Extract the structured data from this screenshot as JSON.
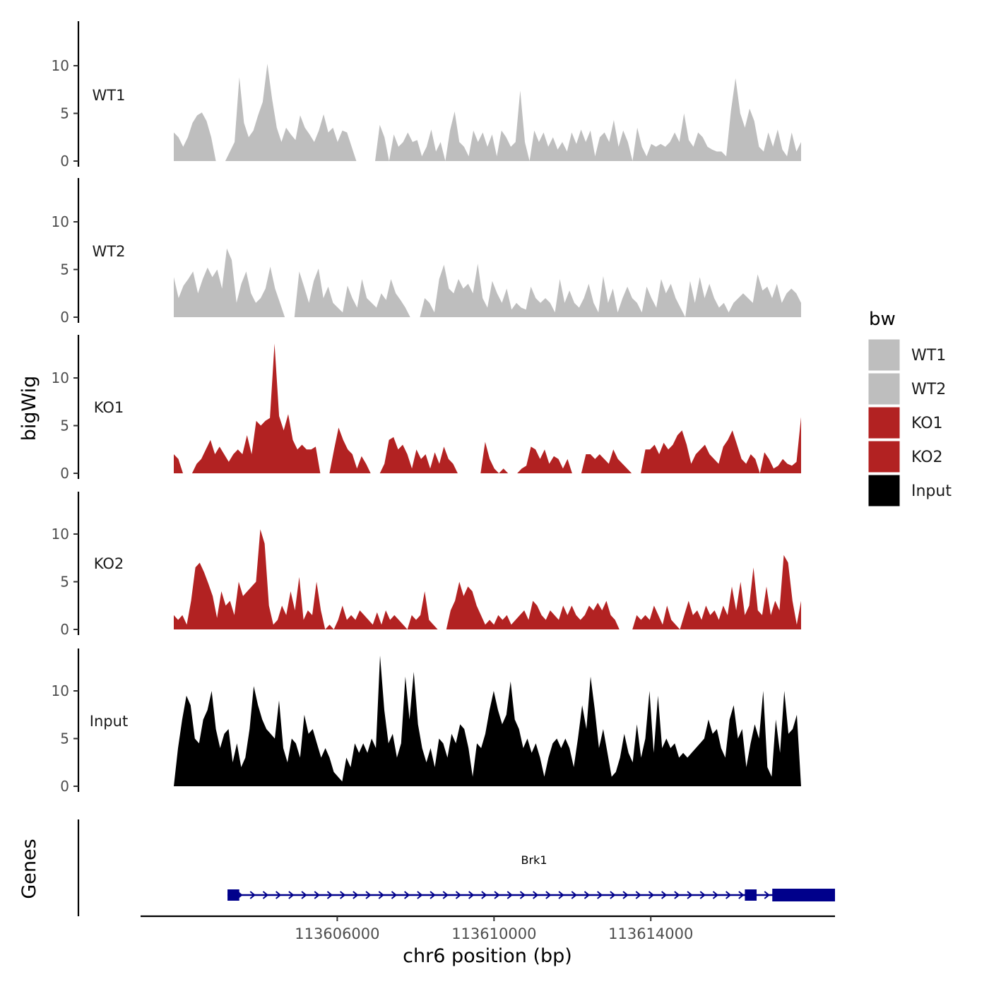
{
  "chart_data": {
    "type": "area",
    "ylabel": "bigWig",
    "xlabel": "chr6 position (bp)",
    "xlim": [
      113601000,
      113618700
    ],
    "ylim": [
      0,
      14
    ],
    "yticks": [
      "0",
      "5",
      "10"
    ],
    "xticks": [
      {
        "value": 113606000,
        "label": "113606000"
      },
      {
        "value": 113610000,
        "label": "113610000"
      },
      {
        "value": 113614000,
        "label": "113614000"
      }
    ],
    "legend": {
      "title": "bw",
      "position": "right",
      "entries": [
        {
          "label": "WT1",
          "color": "#bebebe"
        },
        {
          "label": "WT2",
          "color": "#bebebe"
        },
        {
          "label": "KO1",
          "color": "#b22222"
        },
        {
          "label": "KO2",
          "color": "#b22222"
        },
        {
          "label": "Input",
          "color": "#000000"
        }
      ]
    },
    "series": [
      {
        "name": "WT1",
        "color": "#bebebe",
        "values": [
          3.0,
          2.5,
          1.5,
          2.5,
          4.0,
          4.8,
          5.1,
          4.2,
          2.5,
          0.0,
          null,
          0.0,
          1.0,
          2.0,
          8.8,
          4.0,
          2.5,
          3.2,
          4.8,
          6.2,
          10.2,
          6.5,
          3.5,
          2.0,
          3.5,
          2.8,
          2.2,
          4.8,
          3.5,
          2.8,
          2.0,
          3.2,
          4.9,
          3.0,
          3.5,
          2.0,
          3.2,
          3.0,
          1.5,
          0.0,
          null,
          null,
          null,
          0.0,
          3.8,
          2.5,
          0.0,
          2.8,
          1.5,
          2.0,
          3.0,
          2.0,
          2.2,
          0.5,
          1.5,
          3.3,
          1.0,
          2.0,
          0.0,
          3.2,
          5.2,
          2.0,
          1.5,
          0.5,
          3.2,
          2.0,
          3.0,
          1.5,
          2.8,
          0.5,
          3.2,
          2.5,
          1.5,
          2.0,
          7.4,
          2.0,
          0.0,
          3.2,
          2.0,
          3.0,
          1.5,
          2.5,
          1.2,
          2.0,
          1.0,
          3.0,
          1.8,
          3.3,
          2.0,
          3.2,
          0.5,
          2.5,
          3.0,
          2.0,
          4.3,
          1.5,
          3.2,
          2.0,
          0.0,
          3.5,
          1.5,
          0.5,
          1.8,
          1.5,
          1.8,
          1.5,
          2.0,
          3.0,
          2.0,
          5.0,
          2.2,
          1.5,
          3.0,
          2.5,
          1.5,
          1.2,
          1.0,
          1.0,
          0.5,
          5.2,
          8.7,
          5.0,
          3.5,
          5.5,
          4.2,
          1.5,
          1.0,
          3.0,
          1.5,
          3.3,
          1.2,
          0.5,
          3.0,
          1.0,
          2.0
        ]
      },
      {
        "name": "WT2",
        "color": "#bebebe",
        "values": [
          4.2,
          2.0,
          3.3,
          4.0,
          4.8,
          2.5,
          4.0,
          5.2,
          4.2,
          5.0,
          3.0,
          7.2,
          6.0,
          1.5,
          3.5,
          4.8,
          2.5,
          1.5,
          2.0,
          3.0,
          5.3,
          3.0,
          1.5,
          0.0,
          null,
          0.0,
          4.8,
          3.2,
          1.5,
          3.8,
          5.1,
          2.0,
          3.2,
          1.5,
          1.0,
          0.5,
          3.3,
          2.0,
          1.0,
          4.0,
          2.0,
          1.5,
          1.0,
          2.5,
          1.8,
          4.0,
          2.5,
          1.8,
          1.0,
          0.0,
          null,
          0.0,
          2.0,
          1.5,
          0.5,
          4.0,
          5.5,
          3.0,
          2.5,
          4.0,
          3.0,
          3.5,
          2.5,
          5.6,
          2.0,
          1.0,
          3.8,
          2.5,
          1.5,
          3.0,
          0.8,
          1.5,
          1.0,
          0.8,
          3.2,
          2.0,
          1.5,
          2.0,
          1.5,
          0.5,
          4.0,
          1.5,
          2.8,
          1.5,
          1.0,
          2.0,
          3.5,
          1.5,
          0.5,
          4.3,
          1.5,
          3.0,
          0.5,
          2.0,
          3.2,
          2.0,
          1.5,
          0.5,
          3.2,
          2.0,
          1.0,
          4.0,
          2.5,
          3.5,
          2.0,
          1.0,
          0.0,
          3.8,
          1.5,
          4.2,
          2.0,
          3.5,
          2.0,
          1.0,
          1.5,
          0.5,
          1.5,
          2.0,
          2.5,
          2.0,
          1.5,
          4.5,
          2.8,
          3.2,
          2.0,
          3.5,
          1.5,
          2.5,
          3.0,
          2.5,
          1.5
        ]
      },
      {
        "name": "KO1",
        "color": "#b22222",
        "values": [
          2.0,
          1.5,
          0.0,
          null,
          0.0,
          1.0,
          1.5,
          2.5,
          3.5,
          2.0,
          2.8,
          2.0,
          1.2,
          2.0,
          2.5,
          2.0,
          4.0,
          2.0,
          5.5,
          5.0,
          5.5,
          5.8,
          13.6,
          6.0,
          4.5,
          6.2,
          3.5,
          2.5,
          3.0,
          2.5,
          2.5,
          2.8,
          0.0,
          null,
          0.0,
          2.5,
          4.8,
          3.5,
          2.5,
          2.0,
          0.5,
          1.8,
          1.0,
          0.0,
          null,
          0.0,
          1.0,
          3.5,
          3.8,
          2.5,
          3.0,
          2.0,
          0.5,
          2.5,
          1.5,
          2.0,
          0.5,
          2.2,
          1.0,
          2.8,
          1.5,
          1.0,
          0.0,
          null,
          null,
          null,
          null,
          0.0,
          3.3,
          1.5,
          0.5,
          0.0,
          0.5,
          0.0,
          null,
          0.0,
          0.5,
          0.8,
          2.8,
          2.5,
          1.5,
          2.5,
          1.0,
          1.8,
          1.5,
          0.5,
          1.5,
          0.0,
          null,
          0.0,
          2.0,
          2.0,
          1.5,
          2.0,
          1.5,
          1.0,
          2.5,
          1.5,
          1.0,
          0.5,
          0.0,
          null,
          0.0,
          2.5,
          2.5,
          3.0,
          2.0,
          3.2,
          2.5,
          3.0,
          4.0,
          4.5,
          3.0,
          1.0,
          2.0,
          2.5,
          3.0,
          2.0,
          1.5,
          1.0,
          2.8,
          3.5,
          4.5,
          3.0,
          1.5,
          1.0,
          2.0,
          1.5,
          0.0,
          2.2,
          1.5,
          0.5,
          0.8,
          1.5,
          1.0,
          0.8,
          1.2,
          5.9
        ]
      },
      {
        "name": "KO2",
        "color": "#b22222",
        "values": [
          1.5,
          1.0,
          1.5,
          0.5,
          3.0,
          6.5,
          7.0,
          6.0,
          4.8,
          3.5,
          1.2,
          4.0,
          2.5,
          3.0,
          1.5,
          5.0,
          3.5,
          4.0,
          4.5,
          5.0,
          10.5,
          9.0,
          2.5,
          0.5,
          1.0,
          2.5,
          1.5,
          4.0,
          2.0,
          5.5,
          1.0,
          2.0,
          1.5,
          5.0,
          2.0,
          0.0,
          0.5,
          0.0,
          1.0,
          2.5,
          1.0,
          1.5,
          1.0,
          2.0,
          1.5,
          1.0,
          0.5,
          1.8,
          0.5,
          2.0,
          1.0,
          1.5,
          1.0,
          0.5,
          0.0,
          1.5,
          1.0,
          1.5,
          4.0,
          1.0,
          0.5,
          0.0,
          null,
          0.0,
          2.0,
          3.0,
          5.0,
          3.5,
          4.5,
          4.0,
          2.5,
          1.5,
          0.5,
          1.0,
          0.5,
          1.5,
          1.0,
          1.5,
          0.5,
          1.0,
          1.5,
          2.0,
          1.0,
          3.0,
          2.5,
          1.5,
          1.0,
          2.0,
          1.5,
          1.0,
          2.5,
          1.5,
          2.5,
          1.5,
          1.0,
          1.5,
          2.5,
          2.0,
          2.8,
          2.0,
          3.0,
          1.5,
          1.0,
          0.0,
          null,
          null,
          0.0,
          1.5,
          1.0,
          1.5,
          1.0,
          2.5,
          1.5,
          0.5,
          2.5,
          1.0,
          0.5,
          0.0,
          1.5,
          3.0,
          1.5,
          2.0,
          1.0,
          2.5,
          1.5,
          2.0,
          1.0,
          2.5,
          1.5,
          4.5,
          2.0,
          5.0,
          1.5,
          2.5,
          6.5,
          2.0,
          1.5,
          4.5,
          1.5,
          3.0,
          2.0,
          7.8,
          7.0,
          3.0,
          0.5,
          3.0
        ]
      },
      {
        "name": "Input",
        "color": "#000000",
        "values": [
          0.0,
          4.0,
          7.0,
          9.5,
          8.5,
          5.0,
          4.5,
          7.0,
          8.0,
          10.0,
          6.0,
          4.0,
          5.5,
          6.0,
          2.5,
          4.5,
          2.0,
          3.0,
          6.0,
          10.5,
          8.5,
          7.0,
          6.0,
          5.5,
          5.0,
          9.0,
          4.0,
          2.5,
          5.0,
          4.5,
          3.0,
          7.5,
          5.5,
          6.0,
          4.5,
          3.0,
          4.0,
          3.0,
          1.5,
          1.0,
          0.5,
          3.0,
          2.0,
          4.5,
          3.5,
          4.5,
          3.5,
          5.0,
          4.0,
          13.7,
          8.0,
          4.5,
          5.5,
          3.0,
          4.5,
          11.5,
          7.0,
          12.0,
          6.5,
          4.0,
          2.5,
          4.0,
          2.0,
          5.0,
          4.5,
          3.0,
          5.5,
          4.5,
          6.5,
          6.0,
          4.0,
          1.0,
          4.5,
          4.0,
          5.5,
          8.0,
          10.0,
          8.0,
          6.5,
          7.5,
          11.0,
          7.0,
          6.0,
          4.0,
          5.0,
          3.5,
          4.5,
          3.0,
          1.0,
          3.0,
          4.5,
          5.0,
          4.0,
          5.0,
          4.0,
          2.0,
          5.0,
          8.5,
          6.0,
          11.5,
          8.0,
          4.0,
          6.0,
          3.5,
          1.0,
          1.5,
          3.0,
          5.5,
          3.5,
          2.5,
          6.5,
          3.0,
          5.0,
          10.0,
          3.5,
          9.5,
          4.0,
          5.0,
          4.0,
          4.5,
          3.0,
          3.5,
          3.0,
          3.5,
          4.0,
          4.5,
          5.0,
          7.0,
          5.5,
          6.0,
          4.0,
          3.0,
          7.0,
          8.5,
          5.0,
          6.0,
          2.0,
          4.5,
          6.5,
          5.0,
          10.0,
          2.0,
          1.0,
          7.0,
          3.5,
          10.0,
          5.5,
          6.0,
          7.5,
          0.0
        ]
      }
    ],
    "genes": {
      "title": "Genes",
      "items": [
        {
          "name": "Brk1",
          "start": 113603200,
          "end": 113618700,
          "strand": "+",
          "exons": [
            [
              113603200,
              113603500
            ],
            [
              113616400,
              113616700
            ],
            [
              113617100,
              113618700
            ]
          ],
          "color": "#00008b"
        }
      ]
    }
  }
}
